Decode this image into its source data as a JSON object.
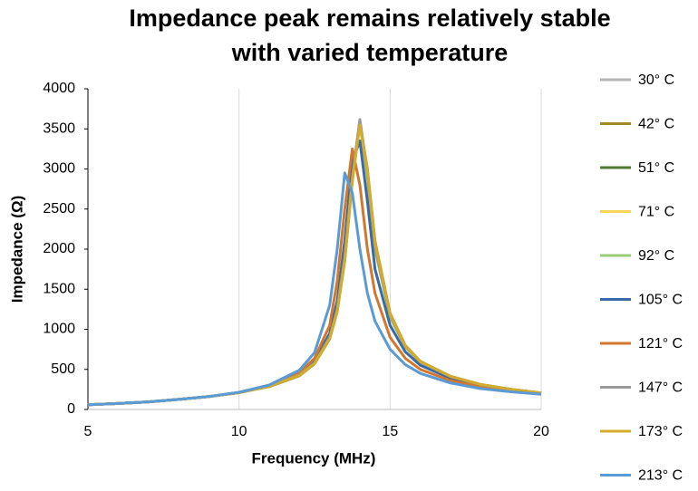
{
  "chart_data": {
    "type": "line",
    "title": [
      "Impedance peak remains relatively stable",
      "with varied temperature"
    ],
    "x_label": "Frequency (MHz)",
    "y_label": "Impedance (Ω)",
    "x": [
      5,
      6,
      7,
      8,
      9,
      10,
      11,
      12,
      12.5,
      13,
      13.25,
      13.5,
      13.75,
      14,
      14.25,
      14.5,
      15,
      15.5,
      16,
      17,
      18,
      19,
      20
    ],
    "series": [
      {
        "name": "30° C",
        "color": "#b5b5b5",
        "values": [
          60,
          75,
          95,
          125,
          160,
          210,
          290,
          430,
          580,
          900,
          1250,
          1900,
          2900,
          3620,
          2950,
          2050,
          1180,
          790,
          595,
          410,
          310,
          250,
          205
        ]
      },
      {
        "name": "42° C",
        "color": "#a08a2a",
        "values": [
          60,
          75,
          95,
          125,
          160,
          210,
          285,
          420,
          570,
          880,
          1220,
          1850,
          2850,
          3580,
          3000,
          2100,
          1200,
          800,
          600,
          415,
          312,
          252,
          206
        ]
      },
      {
        "name": "51° C",
        "color": "#4f7a32",
        "values": [
          60,
          75,
          95,
          125,
          160,
          210,
          290,
          430,
          580,
          900,
          1250,
          1900,
          2900,
          3590,
          2920,
          2020,
          1160,
          785,
          590,
          410,
          310,
          250,
          205
        ]
      },
      {
        "name": "71° C",
        "color": "#f5d45a",
        "values": [
          60,
          75,
          95,
          125,
          160,
          210,
          290,
          430,
          580,
          900,
          1250,
          1900,
          2900,
          3560,
          2900,
          2000,
          1150,
          780,
          590,
          410,
          310,
          250,
          205
        ]
      },
      {
        "name": "92° C",
        "color": "#9ccc78",
        "values": [
          60,
          75,
          95,
          125,
          160,
          210,
          290,
          430,
          580,
          900,
          1250,
          1900,
          2900,
          3570,
          2900,
          2000,
          1150,
          780,
          590,
          410,
          310,
          250,
          205
        ]
      },
      {
        "name": "105° C",
        "color": "#3a6aa5",
        "values": [
          60,
          75,
          95,
          125,
          160,
          210,
          292,
          440,
          600,
          950,
          1350,
          2100,
          3100,
          3350,
          2600,
          1750,
          1050,
          720,
          550,
          390,
          300,
          240,
          200
        ]
      },
      {
        "name": "121° C",
        "color": "#d2772c",
        "values": [
          60,
          75,
          95,
          125,
          160,
          212,
          296,
          460,
          640,
          1050,
          1600,
          2500,
          3250,
          2800,
          2000,
          1450,
          900,
          640,
          500,
          360,
          280,
          230,
          195
        ]
      },
      {
        "name": "147° C",
        "color": "#999999",
        "values": [
          60,
          75,
          95,
          125,
          160,
          210,
          290,
          430,
          580,
          900,
          1250,
          1900,
          2900,
          3610,
          2940,
          2030,
          1170,
          785,
          592,
          410,
          310,
          250,
          205
        ]
      },
      {
        "name": "173° C",
        "color": "#d4ab2a",
        "values": [
          60,
          75,
          95,
          125,
          160,
          210,
          288,
          425,
          575,
          890,
          1230,
          1870,
          2870,
          3550,
          2980,
          2080,
          1190,
          795,
          598,
          412,
          311,
          251,
          206
        ]
      },
      {
        "name": "213° C",
        "color": "#5b9bd5",
        "values": [
          60,
          75,
          95,
          125,
          162,
          215,
          305,
          490,
          710,
          1300,
          2000,
          2950,
          2700,
          2000,
          1450,
          1100,
          750,
          560,
          450,
          330,
          260,
          220,
          190
        ]
      }
    ],
    "xlim": [
      5,
      20
    ],
    "ylim": [
      0,
      4000
    ],
    "xticks": [
      5,
      10,
      15,
      20
    ],
    "yticks": [
      0,
      500,
      1000,
      1500,
      2000,
      2500,
      3000,
      3500,
      4000
    ],
    "grid": "x"
  }
}
